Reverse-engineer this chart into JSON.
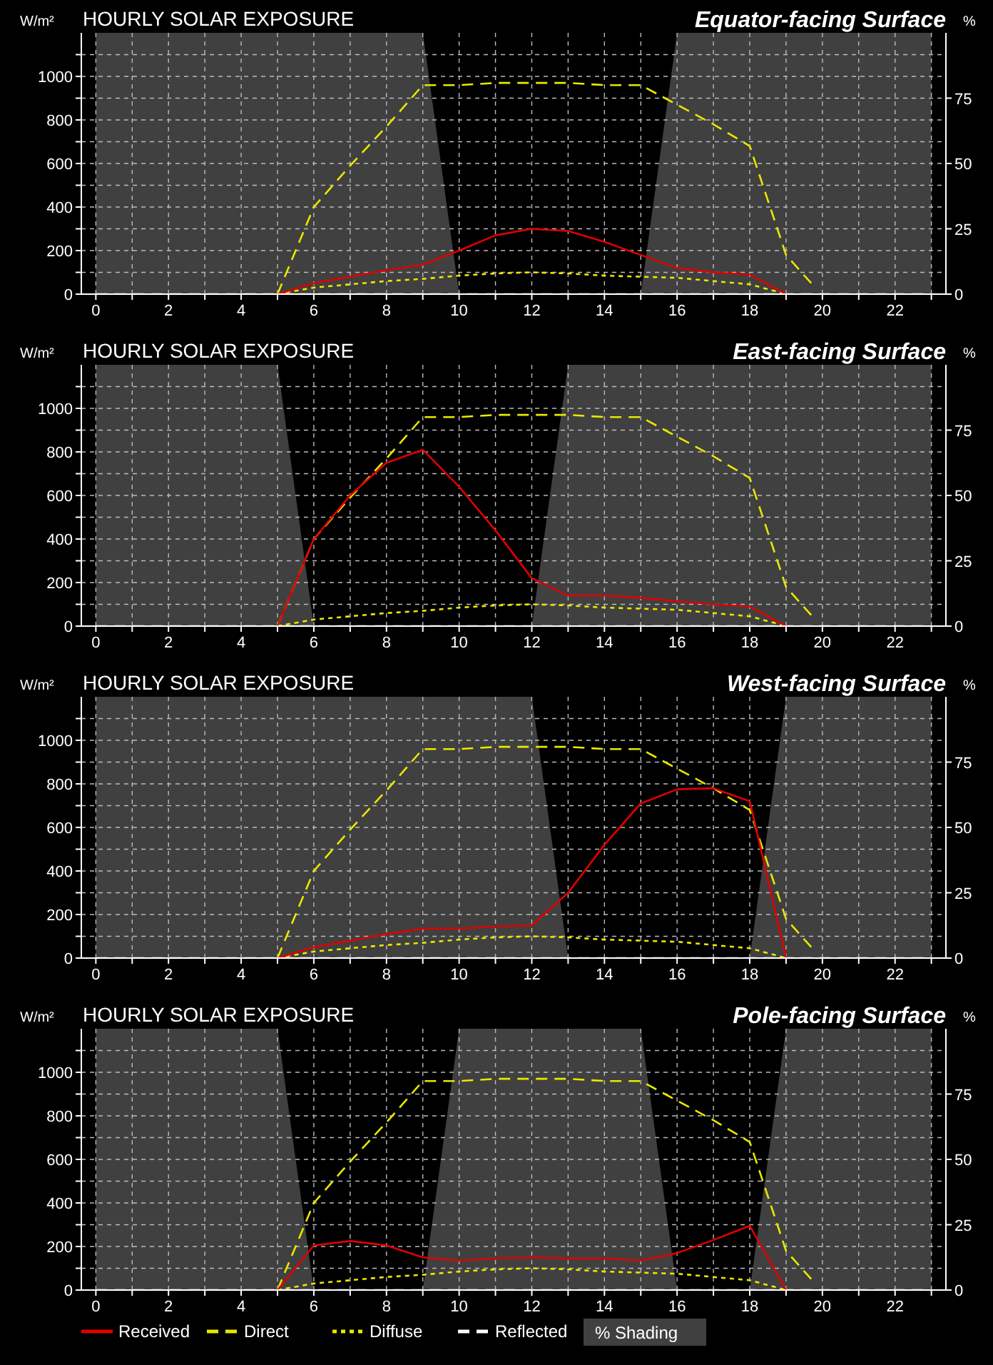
{
  "chart_data": [
    {
      "type": "line",
      "title": "HOURLY SOLAR EXPOSURE",
      "subtitle": "Equator-facing Surface",
      "ylabel": "W/m²",
      "y2label": "%",
      "xlim": [
        -0.4,
        23.4
      ],
      "ylim": [
        0,
        1200
      ],
      "y2lim": [
        0,
        100
      ],
      "xticks": [
        0,
        {
          "value": 1,
          "label": null
        },
        2,
        {
          "value": 3,
          "label": null
        },
        4,
        {
          "value": 5,
          "label": null
        },
        6,
        {
          "value": 7,
          "label": null
        },
        8,
        {
          "value": 9,
          "label": null
        },
        10,
        {
          "value": 11,
          "label": null
        },
        12,
        {
          "value": 13,
          "label": null
        },
        14,
        {
          "value": 15,
          "label": null
        },
        16,
        {
          "value": 17,
          "label": null
        },
        18,
        {
          "value": 19,
          "label": null
        },
        20,
        {
          "value": 21,
          "label": null
        },
        22,
        {
          "value": 23,
          "label": null
        }
      ],
      "yticks": [
        0,
        {
          "value": 100,
          "label": null
        },
        200,
        {
          "value": 300,
          "label": null
        },
        400,
        {
          "value": 500,
          "label": null
        },
        600,
        {
          "value": 700,
          "label": null
        },
        800,
        {
          "value": 900,
          "label": null
        },
        1000,
        {
          "value": 1100,
          "label": null
        }
      ],
      "y2ticks": [
        0,
        25,
        50,
        75
      ],
      "grid": true,
      "legend": false,
      "series": [
        {
          "type": "area",
          "axis": "y2",
          "color": "#404040",
          "x": [
            0,
            1,
            2,
            3,
            4,
            5,
            6,
            7,
            8,
            9,
            10,
            11,
            12,
            13,
            14,
            15,
            16,
            17,
            18,
            19,
            20,
            21,
            22,
            23
          ],
          "values": [
            100,
            100,
            100,
            100,
            100,
            100,
            100,
            100,
            100,
            100,
            0,
            0,
            0,
            0,
            0,
            0,
            100,
            100,
            100,
            100,
            100,
            100,
            100,
            100
          ]
        },
        {
          "type": "line",
          "color": "#ffffff",
          "line_style": "dashed",
          "x": [
            0,
            1,
            2,
            3,
            4,
            5,
            6,
            7,
            8,
            9,
            10,
            11,
            12,
            13,
            14,
            15,
            16,
            17,
            18,
            19,
            20,
            21,
            22,
            23
          ],
          "values": [
            0,
            0,
            0,
            0,
            0,
            0,
            0,
            0,
            0,
            0,
            0,
            0,
            0,
            0,
            0,
            0,
            0,
            0,
            0,
            0,
            0,
            0,
            0,
            0
          ]
        },
        {
          "type": "line",
          "color": "#e8e800",
          "line_style": "dotted",
          "x": [
            5,
            6,
            7,
            8,
            9,
            10,
            11,
            12,
            13,
            14,
            15,
            16,
            17,
            18,
            19
          ],
          "values": [
            0,
            30,
            45,
            60,
            70,
            85,
            95,
            100,
            95,
            85,
            80,
            75,
            60,
            45,
            0
          ]
        },
        {
          "type": "line",
          "color": "#e8e800",
          "line_style": "dashed",
          "x": [
            5,
            6,
            7,
            8,
            9,
            10,
            11,
            12,
            13,
            14,
            15,
            16,
            17,
            18,
            19,
            19.8
          ],
          "values": [
            0,
            400,
            590,
            770,
            960,
            960,
            970,
            970,
            970,
            960,
            960,
            870,
            780,
            680,
            180,
            30
          ]
        },
        {
          "type": "line",
          "color": "#e00000",
          "line_style": "solid",
          "x": [
            5,
            6,
            7,
            8,
            9,
            10,
            11,
            12,
            13,
            14,
            15,
            16,
            17,
            18,
            19
          ],
          "values": [
            0,
            50,
            80,
            110,
            135,
            200,
            270,
            300,
            290,
            240,
            180,
            120,
            100,
            90,
            0
          ]
        }
      ]
    },
    {
      "type": "line",
      "title": "HOURLY SOLAR EXPOSURE",
      "subtitle": "East-facing Surface",
      "ylabel": "W/m²",
      "y2label": "%",
      "xlim": [
        -0.4,
        23.4
      ],
      "ylim": [
        0,
        1200
      ],
      "y2lim": [
        0,
        100
      ],
      "xticks": [
        0,
        {
          "value": 1,
          "label": null
        },
        2,
        {
          "value": 3,
          "label": null
        },
        4,
        {
          "value": 5,
          "label": null
        },
        6,
        {
          "value": 7,
          "label": null
        },
        8,
        {
          "value": 9,
          "label": null
        },
        10,
        {
          "value": 11,
          "label": null
        },
        12,
        {
          "value": 13,
          "label": null
        },
        14,
        {
          "value": 15,
          "label": null
        },
        16,
        {
          "value": 17,
          "label": null
        },
        18,
        {
          "value": 19,
          "label": null
        },
        20,
        {
          "value": 21,
          "label": null
        },
        22,
        {
          "value": 23,
          "label": null
        }
      ],
      "yticks": [
        0,
        {
          "value": 100,
          "label": null
        },
        200,
        {
          "value": 300,
          "label": null
        },
        400,
        {
          "value": 500,
          "label": null
        },
        600,
        {
          "value": 700,
          "label": null
        },
        800,
        {
          "value": 900,
          "label": null
        },
        1000,
        {
          "value": 1100,
          "label": null
        }
      ],
      "y2ticks": [
        0,
        25,
        50,
        75
      ],
      "grid": true,
      "legend": false,
      "series": [
        {
          "type": "area",
          "axis": "y2",
          "color": "#404040",
          "x": [
            0,
            1,
            2,
            3,
            4,
            5,
            6,
            7,
            8,
            9,
            10,
            11,
            12,
            13,
            14,
            15,
            16,
            17,
            18,
            19,
            20,
            21,
            22,
            23
          ],
          "values": [
            100,
            100,
            100,
            100,
            100,
            100,
            0,
            0,
            0,
            0,
            0,
            0,
            0,
            100,
            100,
            100,
            100,
            100,
            100,
            100,
            100,
            100,
            100,
            100
          ]
        },
        {
          "type": "line",
          "color": "#ffffff",
          "line_style": "dashed",
          "x": [
            0,
            1,
            2,
            3,
            4,
            5,
            6,
            7,
            8,
            9,
            10,
            11,
            12,
            13,
            14,
            15,
            16,
            17,
            18,
            19,
            20,
            21,
            22,
            23
          ],
          "values": [
            0,
            0,
            0,
            0,
            0,
            0,
            0,
            0,
            0,
            0,
            0,
            0,
            0,
            0,
            0,
            0,
            0,
            0,
            0,
            0,
            0,
            0,
            0,
            0
          ]
        },
        {
          "type": "line",
          "color": "#e8e800",
          "line_style": "dotted",
          "x": [
            5,
            6,
            7,
            8,
            9,
            10,
            11,
            12,
            13,
            14,
            15,
            16,
            17,
            18,
            19
          ],
          "values": [
            0,
            30,
            45,
            60,
            70,
            85,
            95,
            100,
            95,
            85,
            80,
            75,
            60,
            45,
            0
          ]
        },
        {
          "type": "line",
          "color": "#e8e800",
          "line_style": "dashed",
          "x": [
            5,
            6,
            7,
            8,
            9,
            10,
            11,
            12,
            13,
            14,
            15,
            16,
            17,
            18,
            19,
            19.8
          ],
          "values": [
            0,
            400,
            590,
            770,
            960,
            960,
            970,
            970,
            970,
            960,
            960,
            870,
            780,
            680,
            180,
            30
          ]
        },
        {
          "type": "line",
          "color": "#e00000",
          "line_style": "solid",
          "x": [
            5,
            6,
            7,
            8,
            9,
            10,
            11,
            12,
            13,
            14,
            15,
            16,
            17,
            18,
            19
          ],
          "values": [
            0,
            400,
            600,
            750,
            810,
            640,
            440,
            220,
            140,
            140,
            130,
            115,
            100,
            90,
            0
          ]
        }
      ]
    },
    {
      "type": "line",
      "title": "HOURLY SOLAR EXPOSURE",
      "subtitle": "West-facing Surface",
      "ylabel": "W/m²",
      "y2label": "%",
      "xlim": [
        -0.4,
        23.4
      ],
      "ylim": [
        0,
        1200
      ],
      "y2lim": [
        0,
        100
      ],
      "xticks": [
        0,
        {
          "value": 1,
          "label": null
        },
        2,
        {
          "value": 3,
          "label": null
        },
        4,
        {
          "value": 5,
          "label": null
        },
        6,
        {
          "value": 7,
          "label": null
        },
        8,
        {
          "value": 9,
          "label": null
        },
        10,
        {
          "value": 11,
          "label": null
        },
        12,
        {
          "value": 13,
          "label": null
        },
        14,
        {
          "value": 15,
          "label": null
        },
        16,
        {
          "value": 17,
          "label": null
        },
        18,
        {
          "value": 19,
          "label": null
        },
        20,
        {
          "value": 21,
          "label": null
        },
        22,
        {
          "value": 23,
          "label": null
        }
      ],
      "yticks": [
        0,
        {
          "value": 100,
          "label": null
        },
        200,
        {
          "value": 300,
          "label": null
        },
        400,
        {
          "value": 500,
          "label": null
        },
        600,
        {
          "value": 700,
          "label": null
        },
        800,
        {
          "value": 900,
          "label": null
        },
        1000,
        {
          "value": 1100,
          "label": null
        }
      ],
      "y2ticks": [
        0,
        25,
        50,
        75
      ],
      "grid": true,
      "legend": false,
      "series": [
        {
          "type": "area",
          "axis": "y2",
          "color": "#404040",
          "x": [
            0,
            1,
            2,
            3,
            4,
            5,
            6,
            7,
            8,
            9,
            10,
            11,
            12,
            13,
            14,
            15,
            16,
            17,
            18,
            19,
            20,
            21,
            22,
            23
          ],
          "values": [
            100,
            100,
            100,
            100,
            100,
            100,
            100,
            100,
            100,
            100,
            100,
            100,
            100,
            0,
            0,
            0,
            0,
            0,
            0,
            100,
            100,
            100,
            100,
            100
          ]
        },
        {
          "type": "line",
          "color": "#ffffff",
          "line_style": "dashed",
          "x": [
            0,
            1,
            2,
            3,
            4,
            5,
            6,
            7,
            8,
            9,
            10,
            11,
            12,
            13,
            14,
            15,
            16,
            17,
            18,
            19,
            20,
            21,
            22,
            23
          ],
          "values": [
            0,
            0,
            0,
            0,
            0,
            0,
            0,
            0,
            0,
            0,
            0,
            0,
            0,
            0,
            0,
            0,
            0,
            0,
            0,
            0,
            0,
            0,
            0,
            0
          ]
        },
        {
          "type": "line",
          "color": "#e8e800",
          "line_style": "dotted",
          "x": [
            5,
            6,
            7,
            8,
            9,
            10,
            11,
            12,
            13,
            14,
            15,
            16,
            17,
            18,
            19
          ],
          "values": [
            0,
            30,
            45,
            60,
            70,
            85,
            95,
            100,
            95,
            85,
            80,
            75,
            60,
            45,
            0
          ]
        },
        {
          "type": "line",
          "color": "#e8e800",
          "line_style": "dashed",
          "x": [
            5,
            6,
            7,
            8,
            9,
            10,
            11,
            12,
            13,
            14,
            15,
            16,
            17,
            18,
            19,
            19.8
          ],
          "values": [
            0,
            400,
            590,
            770,
            960,
            960,
            970,
            970,
            970,
            960,
            960,
            870,
            780,
            680,
            180,
            30
          ]
        },
        {
          "type": "line",
          "color": "#e00000",
          "line_style": "solid",
          "x": [
            5,
            6,
            7,
            8,
            9,
            10,
            11,
            12,
            13,
            14,
            15,
            16,
            17,
            18,
            19
          ],
          "values": [
            0,
            50,
            80,
            110,
            135,
            135,
            145,
            150,
            300,
            520,
            710,
            775,
            780,
            720,
            0
          ]
        }
      ]
    },
    {
      "type": "line",
      "title": "HOURLY SOLAR EXPOSURE",
      "subtitle": "Pole-facing Surface",
      "ylabel": "W/m²",
      "y2label": "%",
      "xlim": [
        -0.4,
        23.4
      ],
      "ylim": [
        0,
        1200
      ],
      "y2lim": [
        0,
        100
      ],
      "xticks": [
        0,
        {
          "value": 1,
          "label": null
        },
        2,
        {
          "value": 3,
          "label": null
        },
        4,
        {
          "value": 5,
          "label": null
        },
        6,
        {
          "value": 7,
          "label": null
        },
        8,
        {
          "value": 9,
          "label": null
        },
        10,
        {
          "value": 11,
          "label": null
        },
        12,
        {
          "value": 13,
          "label": null
        },
        14,
        {
          "value": 15,
          "label": null
        },
        16,
        {
          "value": 17,
          "label": null
        },
        18,
        {
          "value": 19,
          "label": null
        },
        20,
        {
          "value": 21,
          "label": null
        },
        22,
        {
          "value": 23,
          "label": null
        }
      ],
      "yticks": [
        0,
        {
          "value": 100,
          "label": null
        },
        200,
        {
          "value": 300,
          "label": null
        },
        400,
        {
          "value": 500,
          "label": null
        },
        600,
        {
          "value": 700,
          "label": null
        },
        800,
        {
          "value": 900,
          "label": null
        },
        1000,
        {
          "value": 1100,
          "label": null
        }
      ],
      "y2ticks": [
        0,
        25,
        50,
        75
      ],
      "grid": true,
      "legend": "bottom",
      "series": [
        {
          "type": "area",
          "axis": "y2",
          "name": "% Shading",
          "color": "#404040",
          "x": [
            0,
            1,
            2,
            3,
            4,
            5,
            6,
            7,
            8,
            9,
            10,
            11,
            12,
            13,
            14,
            15,
            16,
            17,
            18,
            19,
            20,
            21,
            22,
            23
          ],
          "values": [
            100,
            100,
            100,
            100,
            100,
            100,
            0,
            0,
            0,
            0,
            100,
            100,
            100,
            100,
            100,
            100,
            0,
            0,
            0,
            100,
            100,
            100,
            100,
            100
          ]
        },
        {
          "type": "line",
          "name": "Reflected",
          "color": "#ffffff",
          "line_style": "dashed",
          "x": [
            0,
            1,
            2,
            3,
            4,
            5,
            6,
            7,
            8,
            9,
            10,
            11,
            12,
            13,
            14,
            15,
            16,
            17,
            18,
            19,
            20,
            21,
            22,
            23
          ],
          "values": [
            0,
            0,
            0,
            0,
            0,
            0,
            0,
            0,
            0,
            0,
            0,
            0,
            0,
            0,
            0,
            0,
            0,
            0,
            0,
            0,
            0,
            0,
            0,
            0
          ]
        },
        {
          "type": "line",
          "name": "Diffuse",
          "color": "#e8e800",
          "line_style": "dotted",
          "x": [
            5,
            6,
            7,
            8,
            9,
            10,
            11,
            12,
            13,
            14,
            15,
            16,
            17,
            18,
            19
          ],
          "values": [
            0,
            30,
            45,
            60,
            70,
            85,
            95,
            100,
            95,
            85,
            80,
            75,
            60,
            45,
            0
          ]
        },
        {
          "type": "line",
          "name": "Direct",
          "color": "#e8e800",
          "line_style": "dashed",
          "x": [
            5,
            6,
            7,
            8,
            9,
            10,
            11,
            12,
            13,
            14,
            15,
            16,
            17,
            18,
            19,
            19.8
          ],
          "values": [
            0,
            400,
            590,
            770,
            960,
            960,
            970,
            970,
            970,
            960,
            960,
            870,
            780,
            680,
            180,
            30
          ]
        },
        {
          "type": "line",
          "name": "Received",
          "color": "#e00000",
          "line_style": "solid",
          "x": [
            5,
            6,
            7,
            8,
            9,
            10,
            11,
            12,
            13,
            14,
            15,
            16,
            17,
            18,
            19
          ],
          "values": [
            0,
            205,
            225,
            205,
            150,
            135,
            145,
            150,
            145,
            145,
            135,
            170,
            230,
            295,
            0
          ]
        }
      ]
    }
  ]
}
